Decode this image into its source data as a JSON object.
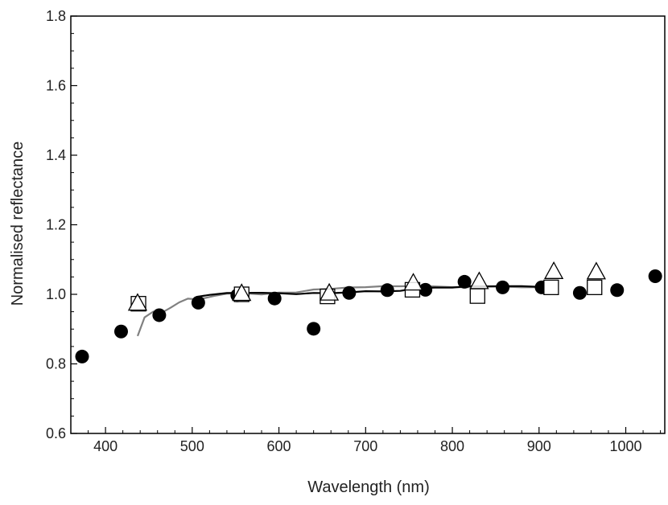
{
  "chart_data": {
    "type": "scatter",
    "title": "",
    "xlabel": "Wavelength (nm)",
    "ylabel": "Normalised reflectance",
    "xlim": [
      360,
      1045
    ],
    "ylim": [
      0.6,
      1.8
    ],
    "xticks": [
      400,
      500,
      600,
      700,
      800,
      900,
      1000
    ],
    "yticks": [
      0.6,
      0.8,
      1.0,
      1.2,
      1.4,
      1.6,
      1.8
    ],
    "xtick_labels": [
      "400",
      "500",
      "600",
      "700",
      "800",
      "900",
      "1000"
    ],
    "ytick_labels": [
      "0.6",
      "0.8",
      "1.0",
      "1.2",
      "1.4",
      "1.6",
      "1.8"
    ],
    "grid": false,
    "legend": "none",
    "series": [
      {
        "marker": "filled-circle",
        "x": [
          373,
          418,
          462,
          507,
          552,
          595,
          640,
          681,
          725,
          769,
          814,
          858,
          903,
          947,
          990,
          1034
        ],
        "y": [
          0.821,
          0.893,
          0.94,
          0.976,
          0.997,
          0.988,
          0.901,
          1.004,
          1.012,
          1.013,
          1.036,
          1.02,
          1.02,
          1.004,
          1.012,
          1.052
        ]
      },
      {
        "marker": "open-square",
        "x": [
          438,
          557,
          656,
          754,
          829,
          914,
          964
        ],
        "y": [
          0.973,
          1.0,
          0.994,
          1.013,
          0.995,
          1.02,
          1.02
        ]
      },
      {
        "marker": "open-triangle",
        "x": [
          437,
          557,
          658,
          755,
          831,
          917,
          966
        ],
        "y": [
          0.973,
          1.001,
          1.002,
          1.031,
          1.035,
          1.064,
          1.063
        ]
      },
      {
        "style": "line",
        "color": "#808080",
        "x": [
          437,
          445,
          455,
          465,
          475,
          485,
          495,
          505,
          515,
          525,
          540,
          560,
          580,
          600,
          620,
          640,
          660,
          680,
          700,
          720,
          740,
          760,
          780,
          800,
          820,
          840,
          860,
          880,
          900,
          918
        ],
        "y": [
          0.88,
          0.93,
          0.95,
          0.945,
          0.96,
          0.975,
          0.985,
          0.985,
          0.992,
          0.997,
          1.002,
          1.004,
          1.003,
          1.005,
          1.006,
          1.012,
          1.012,
          1.018,
          1.018,
          1.022,
          1.02,
          1.022,
          1.02,
          1.023,
          1.024,
          1.025,
          1.024,
          1.024,
          1.024,
          1.025
        ]
      },
      {
        "style": "line",
        "color": "#000000",
        "x": [
          505,
          520,
          540,
          560,
          580,
          600,
          620,
          640,
          660,
          680,
          700,
          720,
          740,
          760,
          780,
          800,
          820,
          840,
          860,
          880,
          900,
          915
        ],
        "y": [
          0.99,
          0.996,
          1.0,
          1.002,
          1.002,
          1.001,
          1.004,
          1.005,
          1.006,
          1.008,
          1.01,
          1.012,
          1.013,
          1.015,
          1.016,
          1.018,
          1.02,
          1.02,
          1.021,
          1.02,
          1.021,
          1.022
        ]
      }
    ]
  }
}
